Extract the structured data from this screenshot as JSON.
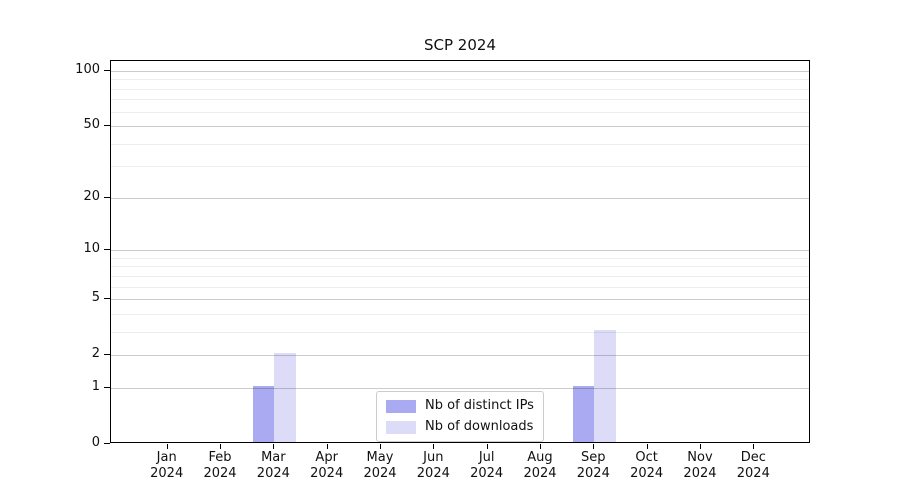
{
  "chart_data": {
    "type": "bar",
    "title": "SCP 2024",
    "categories": [
      "Jan",
      "Feb",
      "Mar",
      "Apr",
      "May",
      "Jun",
      "Jul",
      "Aug",
      "Sep",
      "Oct",
      "Nov",
      "Dec"
    ],
    "category_year_line": "2024",
    "series": [
      {
        "name": "Nb of distinct IPs",
        "color": "#aaaaf2",
        "values": [
          0,
          0,
          1,
          0,
          0,
          0,
          0,
          0,
          1,
          0,
          0,
          0
        ]
      },
      {
        "name": "Nb of downloads",
        "color": "#dcdcf8",
        "values": [
          0,
          0,
          2,
          0,
          0,
          0,
          0,
          0,
          3,
          0,
          0,
          0
        ]
      }
    ],
    "yscale": "log1p",
    "ylim": [
      0,
      110
    ],
    "yticks": [
      0,
      1,
      2,
      5,
      10,
      20,
      50,
      100
    ],
    "minor_gridlines": [
      3,
      4,
      6,
      7,
      8,
      9,
      30,
      40,
      60,
      70,
      80,
      90
    ],
    "grid": "horizontal, drawn over bars",
    "legend_position": "inside plot, lower center",
    "xlabel": "",
    "ylabel": ""
  },
  "colors": {
    "bar_distinct_ips": "#aaaaf2",
    "bar_downloads": "#dcdcf8",
    "axis": "#000000",
    "major_grid": "#cfcfcf",
    "minor_grid": "#ededed",
    "legend_border": "#cccccc",
    "background": "#ffffff",
    "text": "#111111"
  }
}
